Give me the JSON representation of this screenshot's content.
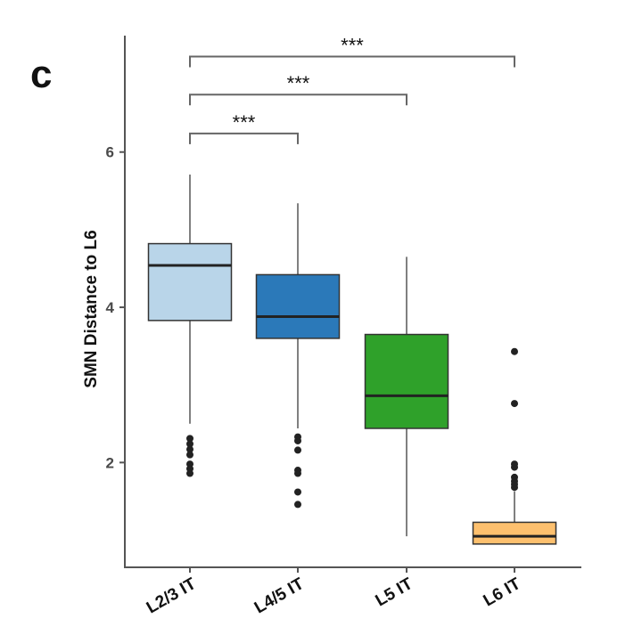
{
  "panel_label": "c",
  "chart_data": {
    "type": "box",
    "ylabel": "SMN Distance to L6",
    "xlabel": "",
    "ylim": [
      0.65,
      7.5
    ],
    "yticks": [
      2,
      4,
      6
    ],
    "grid": false,
    "categories": [
      "L2/3 IT",
      "L4/5 IT",
      "L5 IT",
      "L6 IT"
    ],
    "colors": [
      "#b9d5e9",
      "#2b79b9",
      "#2fa12a",
      "#fdc06e"
    ],
    "boxes": [
      {
        "name": "L2/3 IT",
        "whisker_low": 2.5,
        "q1": 3.83,
        "median": 4.54,
        "q3": 4.82,
        "whisker_high": 5.71,
        "outliers": [
          2.31,
          2.24,
          2.17,
          2.1,
          1.98,
          1.92,
          1.86
        ]
      },
      {
        "name": "L4/5 IT",
        "whisker_low": 2.44,
        "q1": 3.6,
        "median": 3.88,
        "q3": 4.42,
        "whisker_high": 5.34,
        "outliers": [
          2.33,
          2.28,
          2.16,
          1.9,
          1.86,
          1.62,
          1.46
        ]
      },
      {
        "name": "L5 IT",
        "whisker_low": 1.05,
        "q1": 2.44,
        "median": 2.86,
        "q3": 3.65,
        "whisker_high": 4.65,
        "outliers": []
      },
      {
        "name": "L6 IT",
        "whisker_low": 0.95,
        "q1": 0.95,
        "median": 1.05,
        "q3": 1.23,
        "whisker_high": 1.63,
        "outliers": [
          3.43,
          2.76,
          1.98,
          1.94,
          1.81,
          1.76,
          1.72,
          1.68
        ]
      }
    ],
    "annotations": [
      {
        "from": "L2/3 IT",
        "to": "L4/5 IT",
        "label": "***",
        "y": 6.24
      },
      {
        "from": "L2/3 IT",
        "to": "L5 IT",
        "label": "***",
        "y": 6.74
      },
      {
        "from": "L2/3 IT",
        "to": "L6 IT",
        "label": "***",
        "y": 7.23
      }
    ]
  }
}
